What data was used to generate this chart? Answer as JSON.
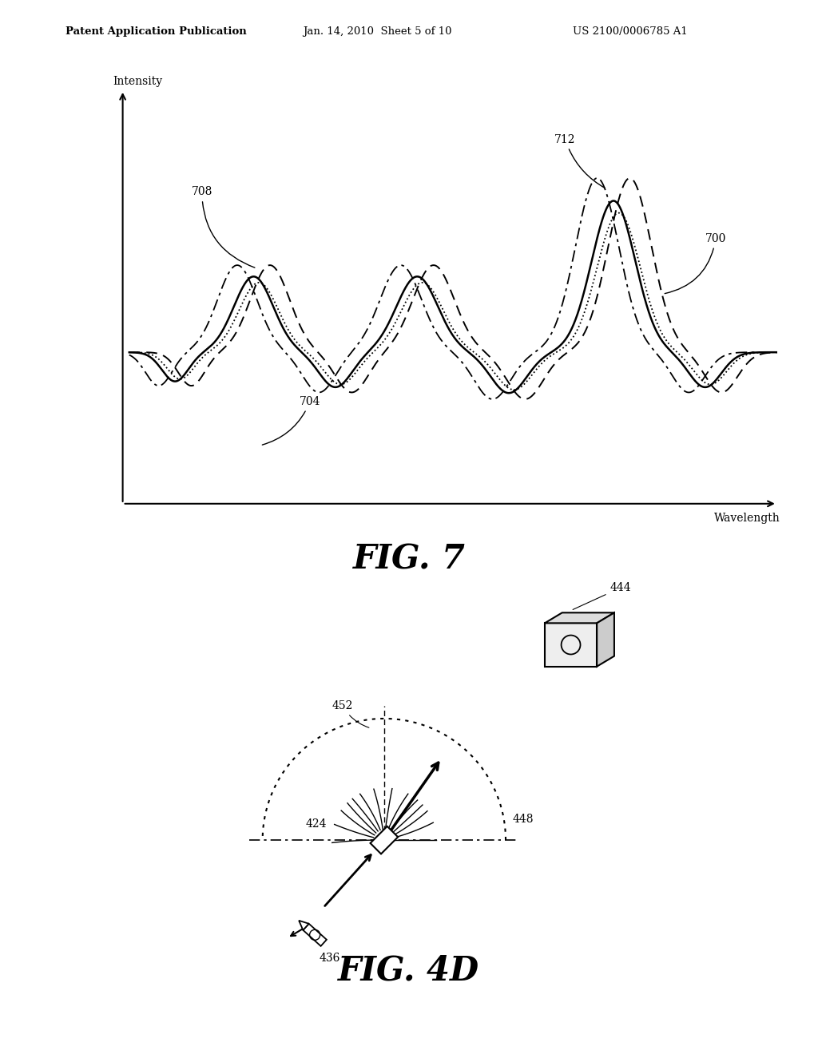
{
  "bg_color": "#ffffff",
  "header_left": "Patent Application Publication",
  "header_mid": "Jan. 14, 2010  Sheet 5 of 10",
  "header_right": "US 2100/0006785 A1",
  "fig7_title": "FIG. 7",
  "fig4d_title": "FIG. 4D",
  "fig7_ylabel": "Intensity",
  "fig7_xlabel": "Wavelength",
  "label_708": "708",
  "label_704": "704",
  "label_712": "712",
  "label_700": "700",
  "label_452": "452",
  "label_424": "424",
  "label_448": "448",
  "label_436": "436",
  "label_444": "444"
}
